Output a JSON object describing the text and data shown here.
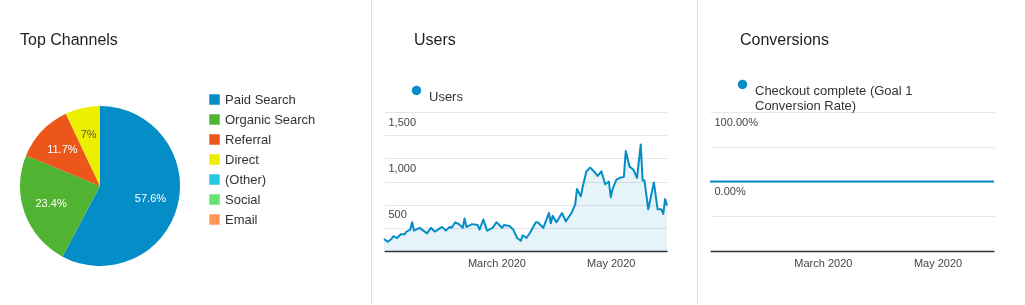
{
  "chart_data": [
    {
      "type": "pie",
      "title": "Top Channels",
      "categories": [
        "Paid Search",
        "Organic Search",
        "Referral",
        "Direct",
        "(Other)",
        "Social",
        "Email"
      ],
      "values": [
        57.6,
        23.4,
        11.7,
        7,
        null,
        null,
        null
      ],
      "colors": [
        "#058dc7",
        "#50b432",
        "#ed561b",
        "#edef00",
        "#24cbe5",
        "#64e572",
        "#ff9655"
      ],
      "value_labels": [
        "57.6%",
        "23.4%",
        "11.7%",
        "7%",
        null,
        null,
        null
      ],
      "legend": "right"
    },
    {
      "type": "area",
      "title": "Users",
      "x": [
        "2020-01-01",
        "2020-01-03",
        "2020-01-05",
        "2020-01-06",
        "2020-01-08",
        "2020-01-10",
        "2020-01-12",
        "2020-01-13",
        "2020-01-15",
        "2020-01-16",
        "2020-01-17",
        "2020-01-20",
        "2020-01-22",
        "2020-01-24",
        "2020-01-26",
        "2020-01-28",
        "2020-01-29",
        "2020-02-01",
        "2020-02-03",
        "2020-02-05",
        "2020-02-06",
        "2020-02-08",
        "2020-02-10",
        "2020-02-12",
        "2020-02-13",
        "2020-02-14",
        "2020-02-17",
        "2020-02-20",
        "2020-02-21",
        "2020-02-23",
        "2020-02-25",
        "2020-02-28",
        "2020-03-01",
        "2020-03-04",
        "2020-03-05",
        "2020-03-08",
        "2020-03-10",
        "2020-03-12",
        "2020-03-14",
        "2020-03-15",
        "2020-03-17",
        "2020-03-19",
        "2020-03-22",
        "2020-03-23",
        "2020-03-26",
        "2020-03-29",
        "2020-03-30",
        "2020-03-31",
        "2020-04-02",
        "2020-04-05",
        "2020-04-07",
        "2020-04-10",
        "2020-04-12",
        "2020-04-13",
        "2020-04-15",
        "2020-04-16",
        "2020-04-18",
        "2020-04-20",
        "2020-04-22",
        "2020-04-24",
        "2020-04-26",
        "2020-04-28",
        "2020-04-30",
        "2020-05-01",
        "2020-05-02",
        "2020-05-04",
        "2020-05-06",
        "2020-05-08",
        "2020-05-09",
        "2020-05-11",
        "2020-05-13",
        "2020-05-15",
        "2020-05-17",
        "2020-05-18",
        "2020-05-19",
        "2020-05-21",
        "2020-05-24",
        "2020-05-26",
        "2020-05-28",
        "2020-05-29",
        "2020-05-30",
        "2020-05-31"
      ],
      "series": [
        {
          "name": "Users",
          "color": "#058dc7",
          "values": [
            130,
            100,
            130,
            160,
            140,
            180,
            180,
            210,
            230,
            310,
            220,
            250,
            220,
            190,
            250,
            210,
            220,
            260,
            220,
            260,
            250,
            310,
            290,
            250,
            350,
            260,
            290,
            280,
            230,
            340,
            220,
            250,
            310,
            250,
            280,
            270,
            230,
            140,
            110,
            170,
            140,
            200,
            310,
            310,
            250,
            410,
            300,
            380,
            310,
            410,
            320,
            410,
            500,
            670,
            590,
            690,
            860,
            900,
            860,
            810,
            860,
            720,
            750,
            580,
            670,
            770,
            790,
            800,
            1080,
            910,
            880,
            790,
            1150,
            760,
            760,
            450,
            740,
            450,
            450,
            400,
            560,
            490
          ]
        }
      ],
      "xlim": [
        "2020-01-01",
        "2020-05-31"
      ],
      "xticks": [
        {
          "value": "2020-03-01",
          "label": "March 2020"
        },
        {
          "value": "2020-05-01",
          "label": "May 2020"
        }
      ],
      "ylim": [
        0,
        1500
      ],
      "yticks": [
        {
          "value": 0,
          "label": null
        },
        {
          "value": 250,
          "label": null
        },
        500,
        {
          "value": 750,
          "label": null
        },
        {
          "value": 1000,
          "label": "1,000"
        },
        {
          "value": 1250,
          "label": null
        },
        {
          "value": 1500,
          "label": "1,500"
        }
      ],
      "grid": "y",
      "legend": "top left"
    },
    {
      "type": "line",
      "title": "Conversions",
      "x": [
        "2020-01-01",
        "2020-05-31"
      ],
      "series": [
        {
          "name": "Checkout complete (Goal 1 Conversion Rate)",
          "color": "#058dc7",
          "values": [
            0,
            0
          ]
        }
      ],
      "xlim": [
        "2020-01-01",
        "2020-05-31"
      ],
      "xticks": [
        {
          "value": "2020-03-01",
          "label": "March 2020"
        },
        {
          "value": "2020-05-01",
          "label": "May 2020"
        }
      ],
      "ylim": [
        -100,
        100
      ],
      "yticks": [
        {
          "value": -100,
          "label": null
        },
        {
          "value": -50,
          "label": null
        },
        {
          "value": 0,
          "label": "0.00%"
        },
        {
          "value": 50,
          "label": null
        },
        {
          "value": 100,
          "label": "100.00%"
        }
      ],
      "grid": "y",
      "legend": "top left"
    }
  ]
}
